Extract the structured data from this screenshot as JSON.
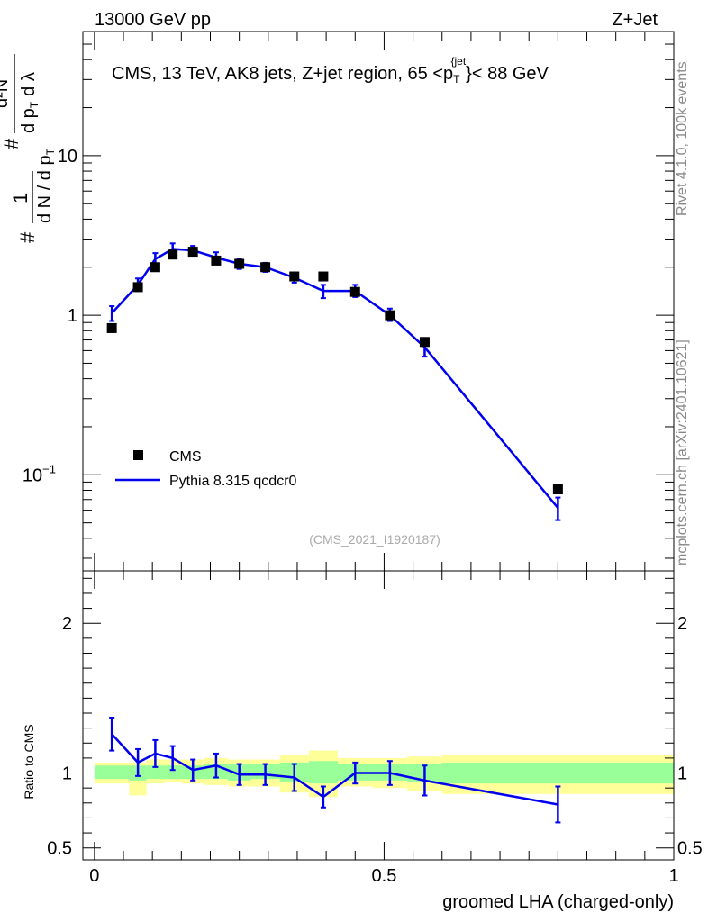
{
  "header": {
    "left": "13000 GeV pp",
    "right": "Z+Jet"
  },
  "side_labels": {
    "rivet": "Rivet 4.1.0,  100k events",
    "mcplots": "mcplots.cern.ch [arXiv:2401.10621]"
  },
  "chart_data": [
    {
      "type": "scatter",
      "panel": "main",
      "title_parts": {
        "pre": "CMS, 13 TeV, AK8 jets, Z+jet region, 65 <p",
        "sup": "{jet",
        "sub": "T",
        "post": "}< 88 GeV"
      },
      "ylabel_parts": {
        "hash1": "#",
        "one": "1",
        "dN": "d N / d p",
        "T": "T",
        "hash2": "#",
        "d2N": "d²N",
        "dpT": "d p",
        "T2": "T",
        "dl": "d λ"
      },
      "yscale": "log",
      "ylim": [
        0.025,
        60
      ],
      "xlim": [
        -0.02,
        1.0
      ],
      "yticks": [
        {
          "value": 0.1,
          "label": "10",
          "exp": "−1"
        },
        {
          "value": 1,
          "label": "1",
          "exp": ""
        },
        {
          "value": 10,
          "label": "10",
          "exp": ""
        }
      ],
      "watermark": "(CMS_2021_I1920187)",
      "legend": {
        "placement": "bottom-left",
        "data_label": "CMS",
        "mc_label": "Pythia 8.315 qcdcr0"
      },
      "series": [
        {
          "name": "CMS",
          "kind": "markers",
          "color": "#000000",
          "x": [
            0.03,
            0.075,
            0.105,
            0.135,
            0.17,
            0.21,
            0.25,
            0.295,
            0.345,
            0.395,
            0.45,
            0.51,
            0.57,
            0.8
          ],
          "values": [
            0.83,
            1.5,
            2.0,
            2.4,
            2.5,
            2.2,
            2.1,
            2.0,
            1.75,
            1.75,
            1.4,
            1.0,
            0.68,
            0.081
          ]
        },
        {
          "name": "Pythia 8.315 qcdcr0",
          "kind": "line",
          "color": "#0000ee",
          "x": [
            0.03,
            0.075,
            0.105,
            0.135,
            0.17,
            0.21,
            0.25,
            0.295,
            0.345,
            0.395,
            0.45,
            0.51,
            0.57,
            0.8
          ],
          "values": [
            1.03,
            1.55,
            2.25,
            2.6,
            2.55,
            2.3,
            2.1,
            2.0,
            1.72,
            1.42,
            1.42,
            1.0,
            0.63,
            0.062
          ],
          "err_low": [
            0.92,
            1.42,
            2.05,
            2.4,
            2.4,
            2.12,
            1.95,
            1.87,
            1.6,
            1.28,
            1.3,
            0.92,
            0.55,
            0.052
          ],
          "err_high": [
            1.14,
            1.7,
            2.45,
            2.82,
            2.72,
            2.48,
            2.25,
            2.13,
            1.85,
            1.55,
            1.55,
            1.1,
            0.7,
            0.072
          ]
        }
      ]
    },
    {
      "type": "line",
      "panel": "ratio",
      "ylabel": "Ratio to CMS",
      "ylim": [
        0.42,
        2.35
      ],
      "xlim": [
        -0.02,
        1.0
      ],
      "xlabel": "groomed LHA (charged-only)",
      "xticks": [
        {
          "value": 0,
          "label": "0"
        },
        {
          "value": 0.5,
          "label": "0.5"
        },
        {
          "value": 1,
          "label": "1"
        }
      ],
      "yticks": [
        {
          "value": 0.5,
          "label": "0.5"
        },
        {
          "value": 1,
          "label": "1"
        },
        {
          "value": 2,
          "label": "2"
        }
      ],
      "bands": {
        "bins": [
          [
            0.0,
            0.06
          ],
          [
            0.06,
            0.09
          ],
          [
            0.09,
            0.12
          ],
          [
            0.12,
            0.15
          ],
          [
            0.15,
            0.19
          ],
          [
            0.19,
            0.23
          ],
          [
            0.23,
            0.27
          ],
          [
            0.27,
            0.32
          ],
          [
            0.32,
            0.37
          ],
          [
            0.37,
            0.42
          ],
          [
            0.42,
            0.48
          ],
          [
            0.48,
            0.54
          ],
          [
            0.54,
            0.6
          ],
          [
            0.6,
            1.0
          ]
        ],
        "inner": [
          [
            0.96,
            1.05
          ],
          [
            0.95,
            1.05
          ],
          [
            0.96,
            1.05
          ],
          [
            0.96,
            1.05
          ],
          [
            0.96,
            1.05
          ],
          [
            0.96,
            1.06
          ],
          [
            0.95,
            1.06
          ],
          [
            0.96,
            1.06
          ],
          [
            0.94,
            1.07
          ],
          [
            0.93,
            1.08
          ],
          [
            0.95,
            1.06
          ],
          [
            0.95,
            1.06
          ],
          [
            0.94,
            1.06
          ],
          [
            0.93,
            1.07
          ]
        ],
        "outer": [
          [
            0.93,
            1.07
          ],
          [
            0.85,
            1.07
          ],
          [
            0.93,
            1.09
          ],
          [
            0.94,
            1.09
          ],
          [
            0.93,
            1.09
          ],
          [
            0.92,
            1.1
          ],
          [
            0.91,
            1.09
          ],
          [
            0.91,
            1.09
          ],
          [
            0.87,
            1.12
          ],
          [
            0.84,
            1.15
          ],
          [
            0.91,
            1.1
          ],
          [
            0.9,
            1.1
          ],
          [
            0.88,
            1.11
          ],
          [
            0.86,
            1.12
          ]
        ],
        "inner_color": "#99ff99",
        "outer_color": "#ffff99"
      },
      "series": [
        {
          "name": "Pythia 8.315 qcdcr0 / CMS",
          "color": "#0000ee",
          "x": [
            0.03,
            0.075,
            0.105,
            0.135,
            0.17,
            0.21,
            0.25,
            0.295,
            0.345,
            0.395,
            0.45,
            0.51,
            0.57,
            0.8
          ],
          "values": [
            1.26,
            1.07,
            1.13,
            1.1,
            1.02,
            1.05,
            0.99,
            0.99,
            0.97,
            0.84,
            1.0,
            1.0,
            0.95,
            0.79
          ],
          "err_low": [
            1.15,
            0.98,
            1.04,
            1.02,
            0.95,
            0.97,
            0.92,
            0.92,
            0.88,
            0.77,
            0.93,
            0.92,
            0.85,
            0.67
          ],
          "err_high": [
            1.37,
            1.16,
            1.22,
            1.18,
            1.09,
            1.13,
            1.06,
            1.06,
            1.06,
            0.91,
            1.07,
            1.08,
            1.05,
            0.91
          ]
        }
      ]
    }
  ]
}
